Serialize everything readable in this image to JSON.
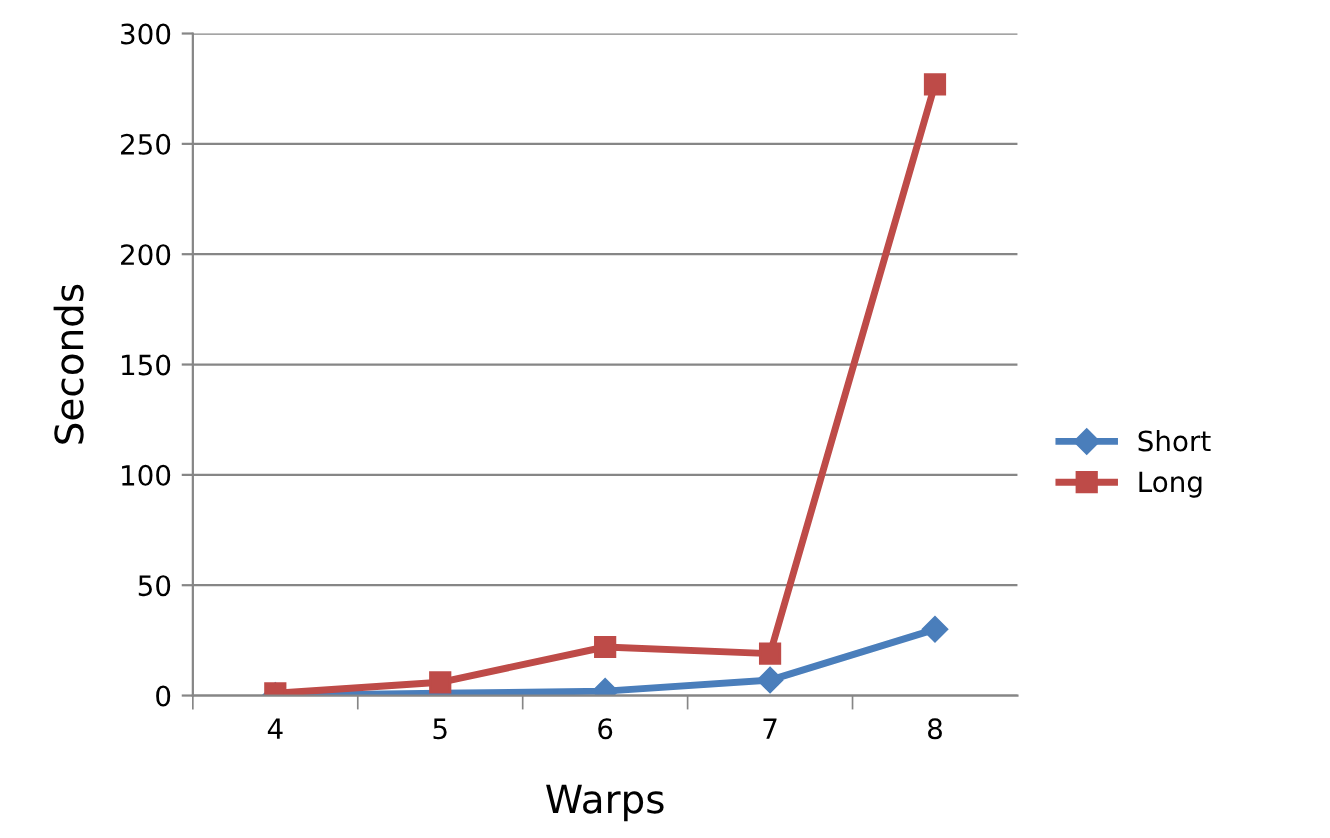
{
  "chart_data": {
    "type": "line",
    "xlabel": "Warps",
    "ylabel": "Seconds",
    "categories": [
      "4",
      "5",
      "6",
      "7",
      "8"
    ],
    "series": [
      {
        "name": "Short",
        "color": "#4a7ebb",
        "values": [
          0,
          1,
          2,
          7,
          30
        ],
        "marker": "diamond"
      },
      {
        "name": "Long",
        "color": "#be4b48",
        "values": [
          1,
          6,
          22,
          19,
          277
        ],
        "marker": "square"
      }
    ],
    "ylim": [
      0,
      300
    ],
    "yticks": [
      0,
      50,
      100,
      150,
      200,
      250,
      300
    ],
    "grid": "y",
    "legend": "right",
    "line_style": "solid"
  }
}
